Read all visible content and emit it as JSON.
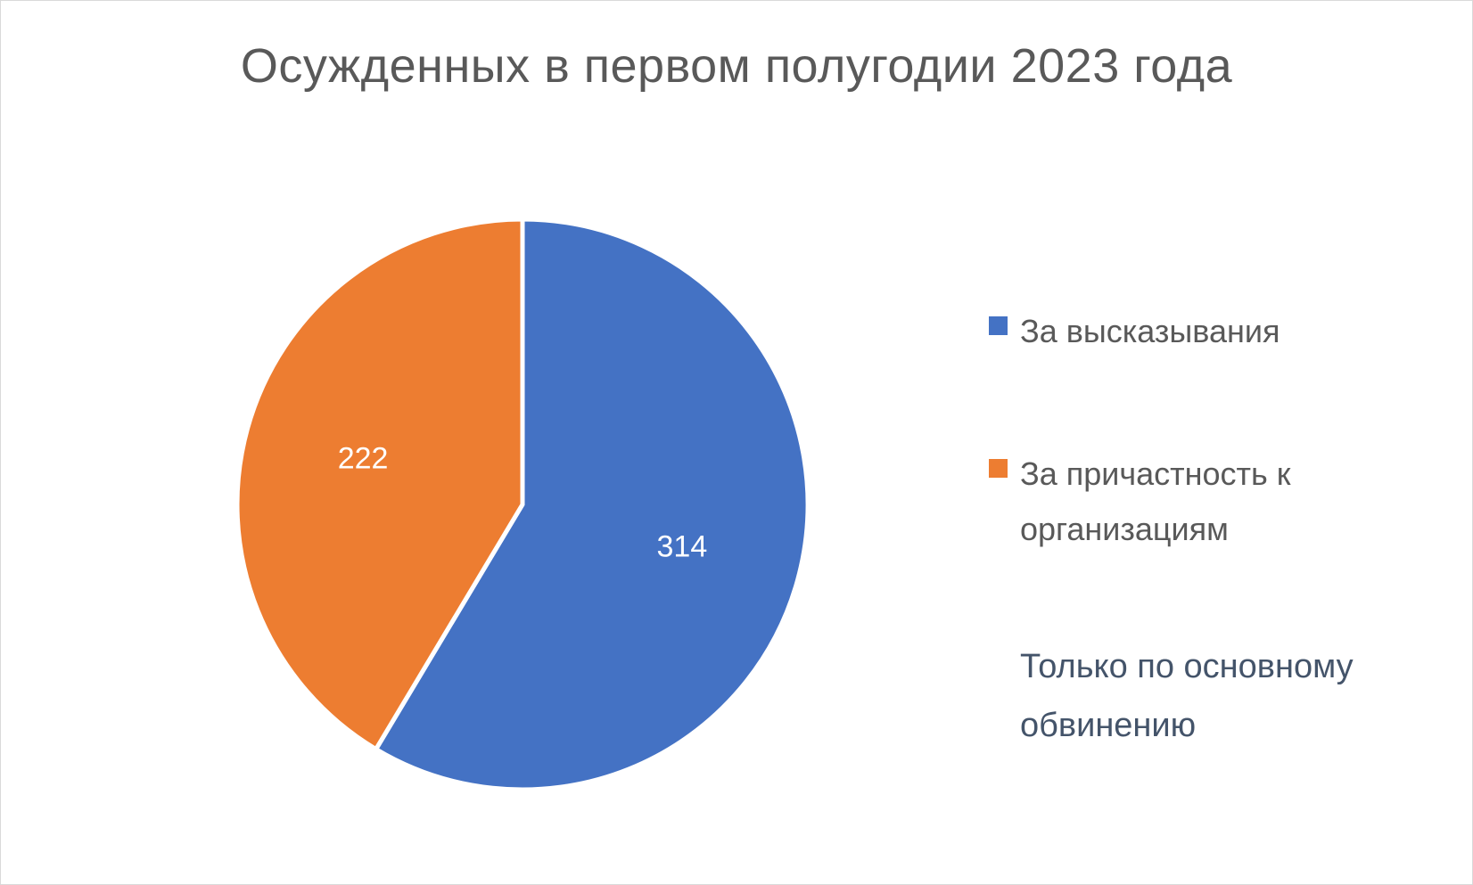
{
  "chart_data": {
    "type": "pie",
    "title": "Осужденных в первом полугодии 2023 года",
    "series": [
      {
        "name": "За высказывания",
        "value": 314,
        "color": "#4472c4"
      },
      {
        "name": "За причастность к организациям",
        "value": 222,
        "color": "#ed7d31"
      }
    ],
    "data_labels": [
      "314",
      "222"
    ],
    "legend": {
      "placement": "right",
      "labels": [
        "За высказывания",
        "За причастность к организациям"
      ]
    },
    "note": "Только по основному обвинению"
  }
}
